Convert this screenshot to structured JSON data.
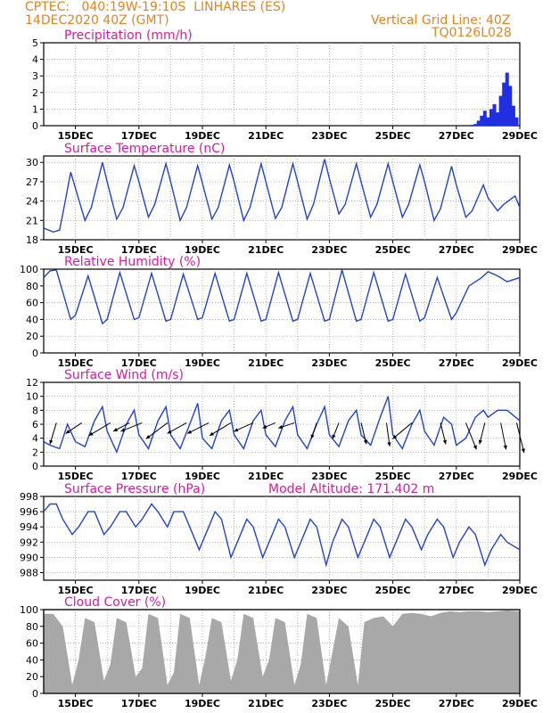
{
  "header": {
    "line1_left": "CPTEC:   040:19W-19:10S  LINHARES (ES)",
    "line2_left": "14DEC2020 40Z (GMT)",
    "line1_right": "Vertical Grid Line: 40Z",
    "line2_right": "TQ0126L028"
  },
  "colors": {
    "header": "#e8821e",
    "title": "#e0179a",
    "series": "#2040e0",
    "bar": "#2030e0",
    "cloud": "#a8a8a8",
    "arrow": "#000000"
  },
  "xaxis": {
    "labels": [
      "15DEC",
      "17DEC",
      "19DEC",
      "21DEC",
      "23DEC",
      "25DEC",
      "27DEC",
      "29DEC"
    ],
    "start_day": 14,
    "end_day": 29
  },
  "chart_data": [
    {
      "id": "precip",
      "type": "bar",
      "title": "Precipitation (mm/h)",
      "ylim": [
        0,
        5
      ],
      "yticks": [
        0,
        1,
        2,
        3,
        4,
        5
      ],
      "x_days": [
        27.5,
        27.6,
        27.7,
        27.8,
        27.9,
        28.0,
        28.1,
        28.2,
        28.3,
        28.4,
        28.5,
        28.6,
        28.7,
        28.8,
        28.9
      ],
      "values": [
        0.05,
        0.1,
        0.3,
        0.6,
        0.9,
        0.5,
        1.0,
        1.3,
        0.8,
        1.8,
        2.6,
        3.2,
        2.4,
        1.2,
        0.5
      ]
    },
    {
      "id": "temp",
      "type": "line",
      "title": "Surface Temperature (nC)",
      "ylim": [
        18,
        31
      ],
      "yticks": [
        18,
        21,
        24,
        27,
        30
      ],
      "x": [
        14.0,
        14.3,
        14.5,
        14.6,
        14.85,
        15.0,
        15.3,
        15.5,
        15.85,
        16.0,
        16.3,
        16.5,
        16.85,
        17.0,
        17.3,
        17.5,
        17.85,
        18.0,
        18.3,
        18.5,
        18.85,
        19.0,
        19.3,
        19.5,
        19.85,
        20.0,
        20.3,
        20.5,
        20.85,
        21.0,
        21.3,
        21.5,
        21.85,
        22.0,
        22.3,
        22.5,
        22.85,
        23.0,
        23.3,
        23.5,
        23.85,
        24.0,
        24.3,
        24.5,
        24.85,
        25.0,
        25.3,
        25.5,
        25.85,
        26.0,
        26.3,
        26.5,
        26.85,
        27.0,
        27.3,
        27.5,
        27.85,
        28.0,
        28.3,
        28.5,
        28.85,
        29.0
      ],
      "y": [
        19.8,
        19.2,
        19.5,
        22.0,
        28.5,
        26.0,
        21.0,
        23.0,
        30.0,
        27.0,
        21.2,
        23.0,
        29.5,
        27.0,
        21.5,
        23.5,
        29.8,
        27.0,
        21.0,
        23.0,
        29.5,
        26.8,
        21.2,
        23.0,
        29.6,
        27.0,
        21.0,
        23.0,
        29.8,
        27.0,
        21.3,
        23.0,
        29.8,
        27.0,
        21.2,
        23.5,
        30.5,
        27.5,
        22.0,
        23.5,
        29.8,
        27.0,
        21.5,
        23.5,
        29.8,
        27.0,
        21.5,
        23.5,
        29.6,
        27.0,
        21.0,
        22.8,
        29.4,
        26.5,
        21.5,
        22.5,
        26.5,
        24.5,
        22.5,
        23.5,
        24.8,
        23.0
      ]
    },
    {
      "id": "rh",
      "type": "line",
      "title": "Relative Humidity (%)",
      "ylim": [
        0,
        100
      ],
      "yticks": [
        0,
        20,
        40,
        60,
        80,
        100
      ],
      "x": [
        14.0,
        14.2,
        14.4,
        14.85,
        15.0,
        15.4,
        15.85,
        16.0,
        16.4,
        16.85,
        17.0,
        17.4,
        17.85,
        18.0,
        18.4,
        18.85,
        19.0,
        19.4,
        19.85,
        20.0,
        20.4,
        20.85,
        21.0,
        21.4,
        21.85,
        22.0,
        22.4,
        22.85,
        23.0,
        23.4,
        23.85,
        24.0,
        24.4,
        24.85,
        25.0,
        25.4,
        25.85,
        26.0,
        26.4,
        26.85,
        27.0,
        27.4,
        27.8,
        28.0,
        28.3,
        28.6,
        29.0
      ],
      "y": [
        90,
        98,
        99,
        40,
        45,
        92,
        35,
        40,
        96,
        40,
        42,
        95,
        38,
        40,
        94,
        40,
        42,
        95,
        38,
        40,
        95,
        38,
        40,
        96,
        38,
        40,
        95,
        38,
        40,
        99,
        38,
        40,
        96,
        38,
        40,
        94,
        38,
        42,
        90,
        40,
        48,
        80,
        90,
        97,
        92,
        85,
        90
      ]
    },
    {
      "id": "wind",
      "type": "line",
      "title": "Surface Wind (m/s)",
      "ylim": [
        0,
        12
      ],
      "yticks": [
        0,
        2,
        4,
        6,
        8,
        10,
        12
      ],
      "x": [
        14.0,
        14.2,
        14.5,
        14.75,
        15.0,
        15.3,
        15.6,
        15.85,
        16.0,
        16.3,
        16.6,
        16.85,
        17.0,
        17.3,
        17.6,
        17.85,
        18.0,
        18.3,
        18.6,
        18.85,
        19.0,
        19.3,
        19.6,
        19.85,
        20.0,
        20.3,
        20.6,
        20.85,
        21.0,
        21.3,
        21.6,
        21.85,
        22.0,
        22.3,
        22.6,
        22.85,
        23.0,
        23.3,
        23.6,
        23.85,
        24.0,
        24.3,
        24.6,
        24.85,
        25.0,
        25.3,
        25.6,
        25.85,
        26.0,
        26.3,
        26.6,
        26.85,
        27.0,
        27.3,
        27.6,
        27.85,
        28.0,
        28.3,
        28.6,
        29.0
      ],
      "y": [
        3.5,
        3.0,
        2.5,
        6.0,
        3.5,
        2.8,
        6.5,
        8.5,
        5.0,
        2.0,
        6.0,
        8.0,
        4.5,
        2.5,
        6.5,
        8.5,
        4.5,
        2.5,
        6.0,
        9.0,
        4.0,
        2.5,
        6.5,
        8.0,
        4.5,
        2.5,
        6.5,
        8.0,
        4.5,
        2.8,
        6.5,
        8.5,
        4.5,
        2.5,
        6.0,
        8.5,
        4.5,
        2.8,
        6.5,
        8.0,
        4.5,
        3.0,
        7.0,
        10.0,
        4.5,
        2.5,
        6.0,
        8.0,
        5.0,
        3.0,
        7.0,
        6.0,
        3.0,
        4.0,
        7.0,
        8.0,
        7.0,
        8.0,
        8.0,
        6.5
      ],
      "arrows": [
        {
          "day": 14.4,
          "u": -0.6,
          "v": -2.0
        },
        {
          "day": 15.2,
          "u": -1.5,
          "v": -1.0
        },
        {
          "day": 16.1,
          "u": -2.0,
          "v": -1.2
        },
        {
          "day": 16.7,
          "u": -1.5,
          "v": -0.8
        },
        {
          "day": 17.1,
          "u": -2.0,
          "v": -0.8
        },
        {
          "day": 17.9,
          "u": -2.0,
          "v": -1.5
        },
        {
          "day": 18.5,
          "u": -1.8,
          "v": -1.0
        },
        {
          "day": 19.2,
          "u": -2.0,
          "v": -1.0
        },
        {
          "day": 19.9,
          "u": -2.0,
          "v": -1.2
        },
        {
          "day": 20.6,
          "u": -1.8,
          "v": -0.8
        },
        {
          "day": 21.3,
          "u": -1.2,
          "v": -0.5
        },
        {
          "day": 21.9,
          "u": -1.5,
          "v": -0.5
        },
        {
          "day": 22.6,
          "u": -0.5,
          "v": -1.5
        },
        {
          "day": 23.3,
          "u": -0.6,
          "v": -1.5
        },
        {
          "day": 24.0,
          "u": 0.5,
          "v": -2.0
        },
        {
          "day": 24.8,
          "u": 0.3,
          "v": -2.2
        },
        {
          "day": 25.6,
          "u": -1.8,
          "v": -1.5
        },
        {
          "day": 26.5,
          "u": 0.5,
          "v": -2.0
        },
        {
          "day": 27.3,
          "u": 1.0,
          "v": -2.5
        },
        {
          "day": 27.9,
          "u": -0.5,
          "v": -2.0
        },
        {
          "day": 28.4,
          "u": 0.5,
          "v": -2.5
        },
        {
          "day": 28.9,
          "u": 0.7,
          "v": -2.8
        }
      ]
    },
    {
      "id": "pressure",
      "type": "line",
      "title": "Surface Pressure (hPa)",
      "subtitle": "Model Altitude: 171.402 m",
      "ylim": [
        987,
        998
      ],
      "yticks": [
        988,
        990,
        992,
        994,
        996,
        998
      ],
      "x": [
        14.0,
        14.2,
        14.4,
        14.6,
        14.9,
        15.1,
        15.4,
        15.6,
        15.9,
        16.1,
        16.4,
        16.6,
        16.9,
        17.1,
        17.4,
        17.6,
        17.9,
        18.1,
        18.4,
        18.6,
        18.9,
        19.1,
        19.4,
        19.6,
        19.9,
        20.1,
        20.4,
        20.6,
        20.9,
        21.1,
        21.4,
        21.6,
        21.9,
        22.1,
        22.4,
        22.6,
        22.9,
        23.1,
        23.4,
        23.6,
        23.9,
        24.1,
        24.4,
        24.6,
        24.9,
        25.1,
        25.4,
        25.6,
        25.9,
        26.1,
        26.4,
        26.6,
        26.9,
        27.1,
        27.4,
        27.6,
        27.9,
        28.1,
        28.4,
        28.6,
        29.0
      ],
      "y": [
        996,
        997,
        997,
        995,
        993,
        994,
        996,
        996,
        993,
        994,
        996,
        996,
        994,
        995,
        997,
        996,
        994,
        996,
        996,
        994,
        991,
        993,
        996,
        995,
        990,
        992,
        995,
        994,
        990,
        992,
        995,
        994,
        990,
        992,
        995,
        994,
        989,
        992,
        995,
        994,
        990,
        992,
        995,
        994,
        990,
        992,
        995,
        994,
        991,
        993,
        995,
        994,
        990,
        992,
        994,
        993,
        989,
        991,
        993,
        992,
        991
      ]
    },
    {
      "id": "cloud",
      "type": "area",
      "title": "Cloud Cover (%)",
      "ylim": [
        0,
        100
      ],
      "yticks": [
        0,
        20,
        40,
        60,
        80,
        100
      ],
      "x": [
        14.0,
        14.3,
        14.6,
        14.9,
        15.1,
        15.3,
        15.6,
        15.9,
        16.1,
        16.3,
        16.6,
        16.9,
        17.1,
        17.3,
        17.6,
        17.9,
        18.1,
        18.3,
        18.6,
        18.9,
        19.1,
        19.3,
        19.6,
        19.9,
        20.1,
        20.3,
        20.6,
        20.9,
        21.1,
        21.3,
        21.6,
        21.9,
        22.1,
        22.3,
        22.6,
        22.9,
        23.1,
        23.3,
        23.6,
        23.9,
        24.1,
        24.4,
        24.7,
        25.0,
        25.3,
        25.6,
        25.9,
        26.2,
        26.5,
        26.8,
        27.1,
        27.4,
        27.7,
        28.0,
        28.3,
        28.6,
        29.0
      ],
      "y": [
        95,
        95,
        80,
        10,
        40,
        90,
        85,
        15,
        35,
        90,
        85,
        20,
        30,
        95,
        90,
        10,
        25,
        95,
        90,
        10,
        45,
        90,
        85,
        15,
        40,
        95,
        90,
        20,
        40,
        90,
        85,
        10,
        35,
        95,
        90,
        10,
        50,
        90,
        80,
        10,
        85,
        90,
        92,
        80,
        95,
        96,
        95,
        92,
        96,
        98,
        97,
        98,
        98,
        97,
        98,
        99,
        98
      ]
    }
  ]
}
